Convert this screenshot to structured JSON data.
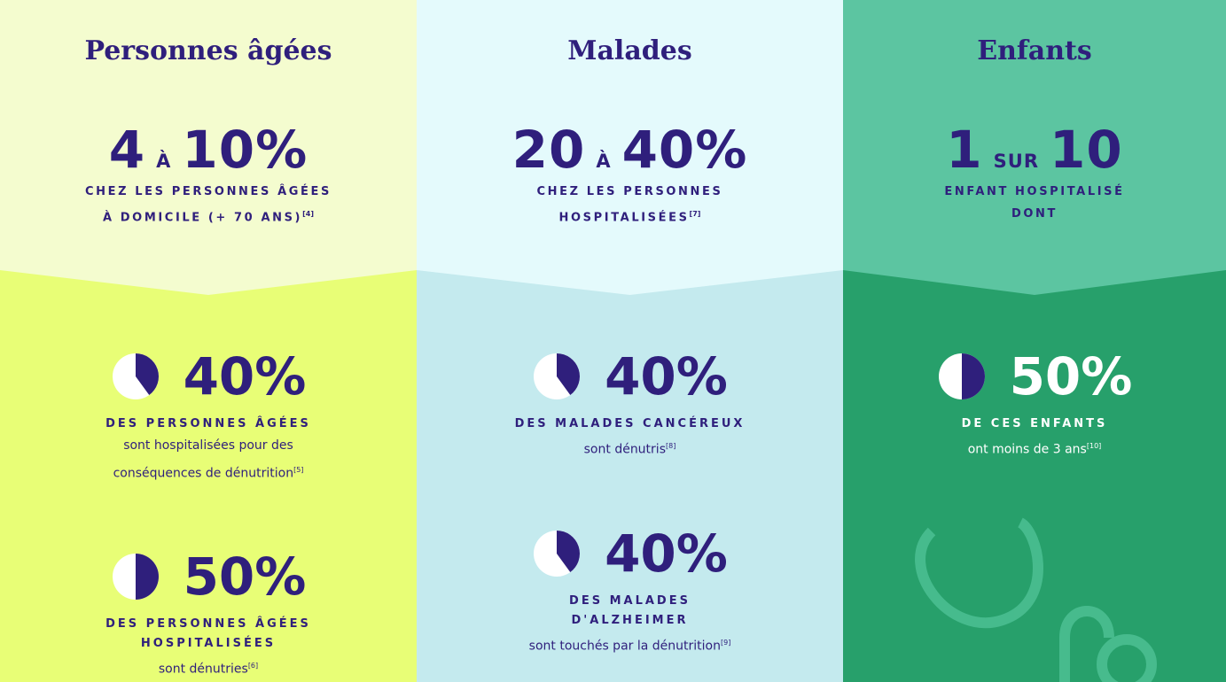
{
  "columns": [
    {
      "title": "Personnes âgées",
      "headline": {
        "a": "4",
        "sep": "À",
        "b": "10%"
      },
      "headline_lines": [
        "CHEZ LES PERSONNES ÂGÉES",
        "À DOMICILE (+ 70 ANS)"
      ],
      "headline_sup": "[4]",
      "stats": [
        {
          "value": 40,
          "label": "40%",
          "lead": [
            "DES PERSONNES ÂGÉES"
          ],
          "text": [
            "sont hospitalisées pour des",
            "conséquences de dénutrition"
          ],
          "sup": "[5]"
        },
        {
          "value": 50,
          "label": "50%",
          "lead": [
            "DES PERSONNES ÂGÉES",
            "HOSPITALISÉES"
          ],
          "text": [
            "sont dénutries"
          ],
          "sup": "[6]"
        }
      ]
    },
    {
      "title": "Malades",
      "headline": {
        "a": "20",
        "sep": "À",
        "b": "40%"
      },
      "headline_lines": [
        "CHEZ LES PERSONNES",
        "HOSPITALISÉES"
      ],
      "headline_sup": "[7]",
      "stats": [
        {
          "value": 40,
          "label": "40%",
          "lead": [
            "DES MALADES CANCÉREUX"
          ],
          "text": [
            "sont dénutris"
          ],
          "sup": "[8]"
        },
        {
          "value": 40,
          "label": "40%",
          "lead": [
            "DES MALADES",
            "D'ALZHEIMER"
          ],
          "text": [
            "sont touchés par la dénutrition"
          ],
          "sup": "[9]"
        }
      ]
    },
    {
      "title": "Enfants",
      "headline": {
        "a": "1",
        "sep": "SUR",
        "b": "10"
      },
      "headline_lines": [
        "ENFANT HOSPITALISÉ",
        "DONT"
      ],
      "stats": [
        {
          "value": 50,
          "label": "50%",
          "lead": [
            "DE CES ENFANTS"
          ],
          "text": [
            "ont moins de 3 ans"
          ],
          "sup": "[10]"
        }
      ]
    }
  ]
}
